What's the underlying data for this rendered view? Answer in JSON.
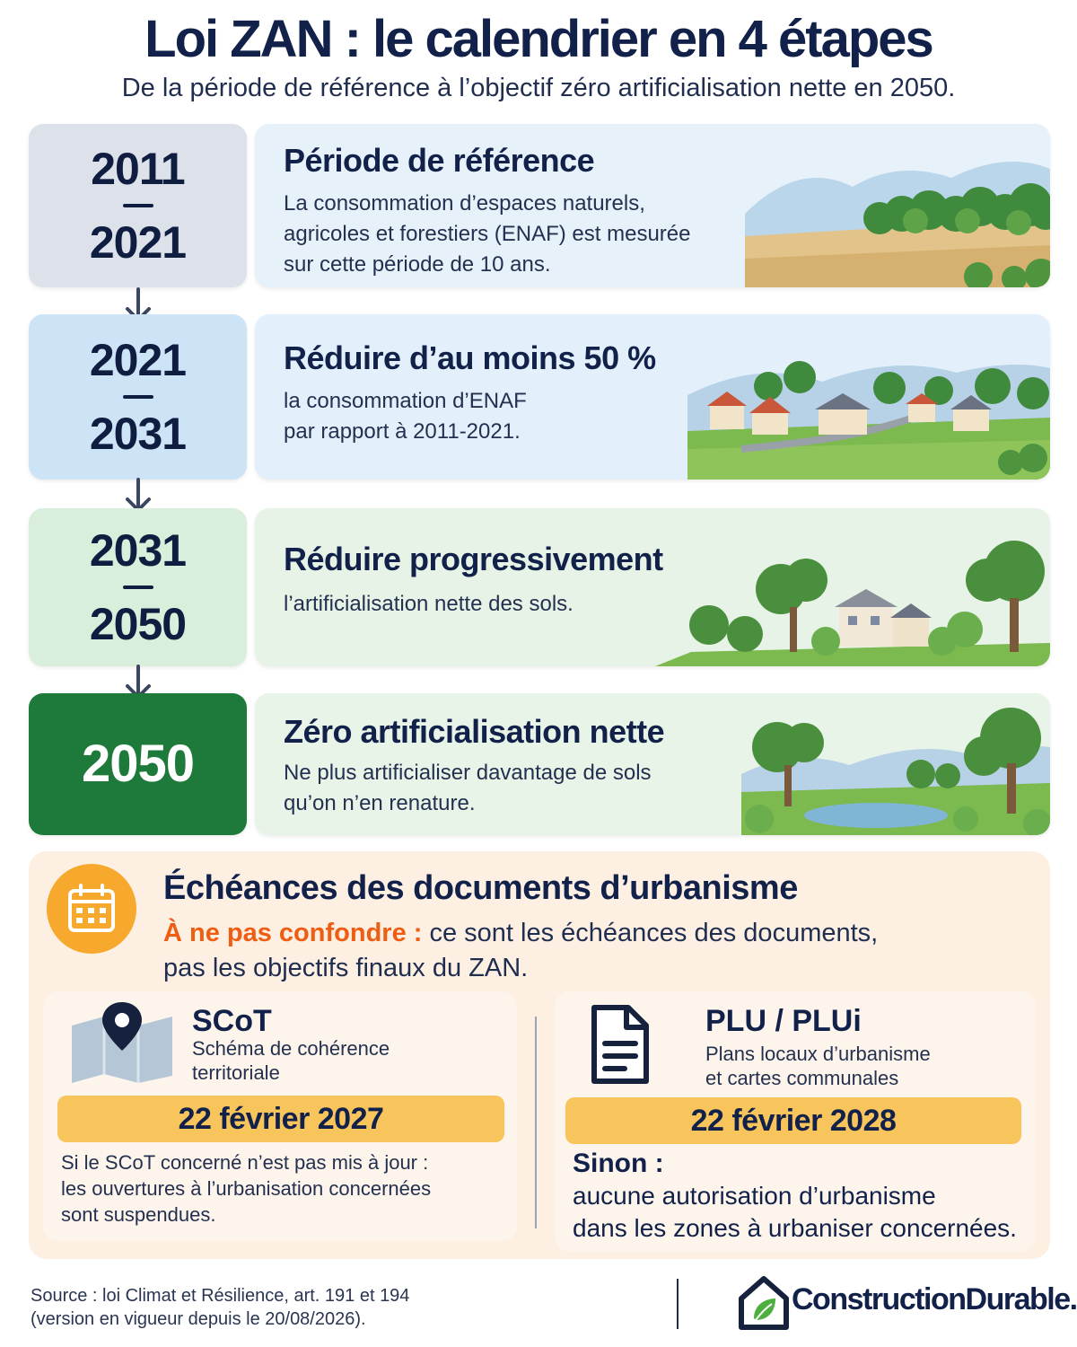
{
  "header": {
    "title": "Loi ZAN : le calendrier en 4 étapes",
    "subtitle": "De la période de référence à l’objectif zéro artificialisation nette en 2050."
  },
  "steps": [
    {
      "year_start": "2011",
      "year_end": "2021",
      "title": "Période de référence",
      "description": [
        "La consommation d’espaces naturels,",
        "agricoles et forestiers (ENAF) est mesurée",
        "sur cette période de 10 ans."
      ],
      "color": "#dde1ea",
      "card_color": "#e7f1fa"
    },
    {
      "year_start": "2021",
      "year_end": "2031",
      "title": "Réduire d’au moins 50 %",
      "description": [
        "la consommation d’ENAF",
        "par rapport à 2011-2021."
      ],
      "color": "#cde3f6",
      "card_color": "#e3f0fb"
    },
    {
      "year_start": "2031",
      "year_end": "2050",
      "title": "Réduire progressivement",
      "description": [
        "l’artificialisation nette des sols."
      ],
      "color": "#d9eedb",
      "card_color": "#e6f3e6"
    },
    {
      "year_single": "2050",
      "title": "Zéro artificialisation nette",
      "description": [
        "Ne plus artificialiser davantage de sols",
        "qu’on n’en renature."
      ],
      "color": "#1e7a3a",
      "card_color": "#e8f4e8"
    }
  ],
  "urbanism": {
    "title": "Échéances des documents d’urbanisme",
    "warning": "À ne pas confondre :",
    "warning_rest": " ce sont les échéances des documents,",
    "warning_line2": "pas les objectifs finaux du ZAN.",
    "icon": "calendar-icon",
    "accent": "#f6a92c"
  },
  "scot": {
    "title": "SCoT",
    "subtitle_1": "Schéma de cohérence",
    "subtitle_2": "territoriale",
    "date": "22 février 2027",
    "note": [
      "Si le SCoT concerné n’est pas mis à jour :",
      "les ouvertures à l’urbanisation concernées",
      "sont suspendues."
    ],
    "icon": "map-pin-icon"
  },
  "plu": {
    "title": "PLU / PLUi",
    "subtitle_1": "Plans locaux d’urbanisme",
    "subtitle_2": "et cartes communales",
    "date": "22 février 2028",
    "sinon": "Sinon :",
    "note": [
      "aucune autorisation d’urbanisme",
      "dans les zones à urbaniser concernées."
    ],
    "icon": "document-icon"
  },
  "footer": {
    "source_1": "Source : loi Climat et Résilience, art. 191 et 194",
    "source_2": "(version en vigueur depuis le 20/08/2026).",
    "brand": "ConstructionDurable.net"
  }
}
